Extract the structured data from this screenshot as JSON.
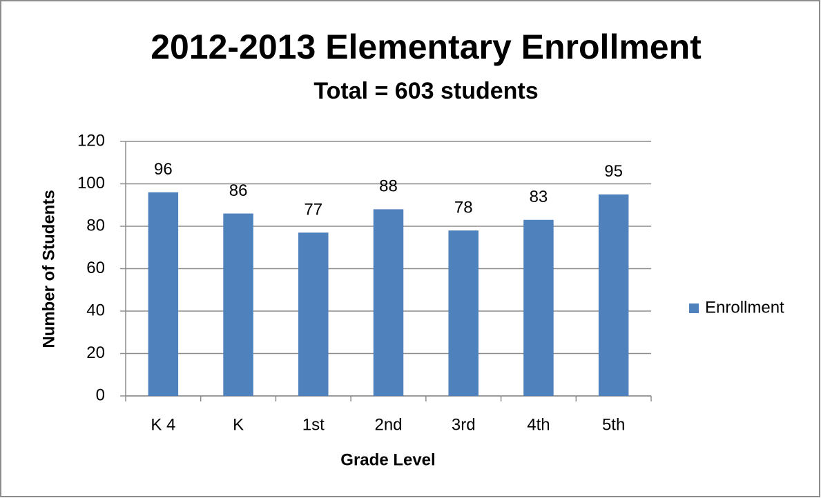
{
  "chart_data": {
    "type": "bar",
    "title": "2012-2013 Elementary Enrollment",
    "subtitle": "Total = 603 students",
    "x_label": "Grade Level",
    "y_label": "Number of Students",
    "categories": [
      "K 4",
      "K",
      "1st",
      "2nd",
      "3rd",
      "4th",
      "5th"
    ],
    "series": [
      {
        "name": "Enrollment",
        "color": "#4f81bd",
        "values": [
          96,
          86,
          77,
          88,
          78,
          83,
          95
        ]
      }
    ],
    "ylim": [
      0,
      120
    ],
    "yticks": [
      0,
      20,
      40,
      60,
      80,
      100,
      120
    ],
    "grid": true,
    "legend": "right"
  }
}
